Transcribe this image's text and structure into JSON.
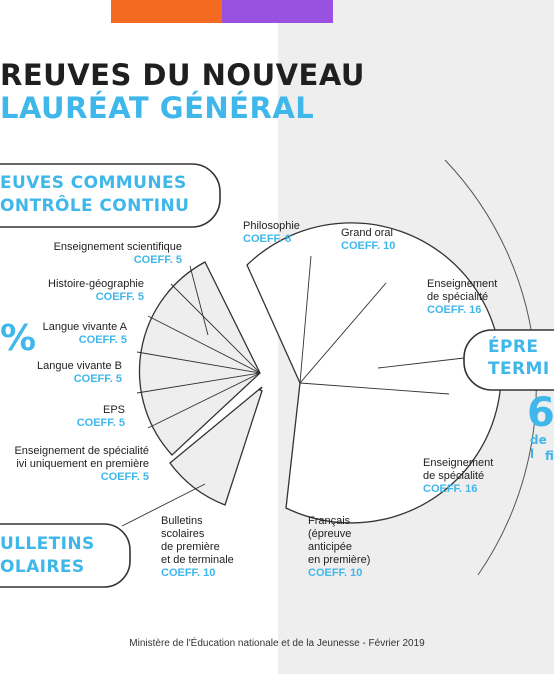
{
  "title": {
    "line1": "REUVES DU NOUVEAU",
    "line2": "LAURÉAT GÉNÉRAL"
  },
  "left_box": {
    "line1": "EUVES COMMUNES",
    "line2": "ONTRÔLE CONTINU"
  },
  "left_percent_fragment": "%",
  "bulletins_box": {
    "line1": "ULLETINS",
    "line2": "OLAIRES"
  },
  "right_box": {
    "line1": "ÉPRE",
    "line2": "TERMI"
  },
  "right_big_fragment": "6",
  "right_sub": {
    "line1": "de l",
    "line2": "fi"
  },
  "left_items": [
    {
      "name": "Enseignement scientifique",
      "coeff": "COEFF. 5"
    },
    {
      "name": "Histoire-géographie",
      "coeff": "COEFF. 5"
    },
    {
      "name": "Langue vivante A",
      "coeff": "COEFF. 5"
    },
    {
      "name": "Langue vivante B",
      "coeff": "COEFF. 5"
    },
    {
      "name": "EPS",
      "coeff": "COEFF. 5"
    },
    {
      "name_line1": "Enseignement de spécialité",
      "name_line2": "ivi uniquement en première",
      "coeff": "COEFF. 5"
    }
  ],
  "bulletins_label": {
    "l1": "Bulletins",
    "l2": "scolaires",
    "l3": "de première",
    "l4": "et de terminale",
    "coeff": "COEFF. 10"
  },
  "right_items": {
    "philo": {
      "name": "Philosophie",
      "coeff": "COEFF. 8"
    },
    "oral": {
      "name": "Grand oral",
      "coeff": "COEFF. 10"
    },
    "spe1": {
      "l1": "Enseignement",
      "l2": "de spécialité",
      "coeff": "COEFF. 16"
    },
    "spe2": {
      "l1": "Enseignement",
      "l2": "de spécialité",
      "coeff": "COEFF. 16"
    },
    "francais": {
      "l1": "Français",
      "l2": "(épreuve",
      "l3": "anticipée",
      "l4": "en première)",
      "coeff": "COEFF. 10"
    }
  },
  "footer": "Ministère de l'Éducation nationale et de la Jeunesse - Février 2019",
  "colors": {
    "orange": "#f26b21",
    "purple": "#9b51e0",
    "blue": "#3fb7ea",
    "dark": "#1f1f1f",
    "grey_bg": "#eeeeee"
  }
}
